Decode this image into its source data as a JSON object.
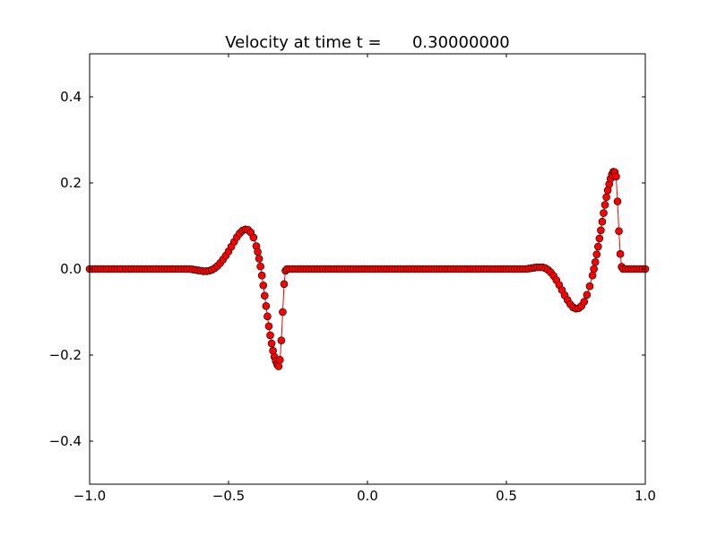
{
  "chart_data": {
    "type": "line",
    "title": "Velocity at time t =      0.30000000",
    "xlabel": "",
    "ylabel": "",
    "xlim": [
      -1.0,
      1.0
    ],
    "ylim": [
      -0.5,
      0.5
    ],
    "xticks": [
      -1.0,
      -0.5,
      0.0,
      0.5,
      1.0
    ],
    "xtick_labels": [
      "−1.0",
      "−0.5",
      "0.0",
      "0.5",
      "1.0"
    ],
    "yticks": [
      -0.4,
      -0.2,
      0.0,
      0.2,
      0.4
    ],
    "ytick_labels": [
      "−0.4",
      "−0.2",
      "0.0",
      "0.2",
      "0.4"
    ],
    "grid": false,
    "line_color": "#ff0000",
    "marker_fill": "#ff0000",
    "marker_edge": "#000000",
    "series": [
      {
        "points": [
          [
            -1.0,
            0.0
          ],
          [
            -0.99,
            0.0
          ],
          [
            -0.98,
            0.0
          ],
          [
            -0.97,
            0.0
          ],
          [
            -0.96,
            0.0
          ],
          [
            -0.95,
            0.0
          ],
          [
            -0.94,
            0.0
          ],
          [
            -0.93,
            0.0
          ],
          [
            -0.92,
            0.0
          ],
          [
            -0.91,
            0.0
          ],
          [
            -0.9,
            0.0
          ],
          [
            -0.89,
            0.0
          ],
          [
            -0.88,
            0.0
          ],
          [
            -0.87,
            0.0
          ],
          [
            -0.86,
            0.0
          ],
          [
            -0.85,
            0.0
          ],
          [
            -0.84,
            0.0
          ],
          [
            -0.83,
            0.0
          ],
          [
            -0.82,
            0.0
          ],
          [
            -0.81,
            0.0
          ],
          [
            -0.8,
            0.0
          ],
          [
            -0.79,
            0.0
          ],
          [
            -0.78,
            0.0
          ],
          [
            -0.77,
            0.0
          ],
          [
            -0.76,
            0.0
          ],
          [
            -0.75,
            0.0
          ],
          [
            -0.74,
            0.0
          ],
          [
            -0.73,
            0.0
          ],
          [
            -0.72,
            0.0
          ],
          [
            -0.71,
            0.0
          ],
          [
            -0.7,
            0.0
          ],
          [
            -0.69,
            0.0
          ],
          [
            -0.68,
            0.0
          ],
          [
            -0.67,
            0.0
          ],
          [
            -0.66,
            0.0
          ],
          [
            -0.65,
            0.0
          ],
          [
            -0.64,
            0.0
          ],
          [
            -0.63,
            -0.001
          ],
          [
            -0.62,
            -0.002
          ],
          [
            -0.61,
            -0.003
          ],
          [
            -0.6,
            -0.004
          ],
          [
            -0.59,
            -0.005
          ],
          [
            -0.58,
            -0.005
          ],
          [
            -0.57,
            -0.004
          ],
          [
            -0.56,
            -0.002
          ],
          [
            -0.55,
            0.002
          ],
          [
            -0.54,
            0.007
          ],
          [
            -0.53,
            0.014
          ],
          [
            -0.52,
            0.022
          ],
          [
            -0.51,
            0.031
          ],
          [
            -0.5,
            0.041
          ],
          [
            -0.49,
            0.052
          ],
          [
            -0.48,
            0.063
          ],
          [
            -0.47,
            0.074
          ],
          [
            -0.46,
            0.083
          ],
          [
            -0.45,
            0.089
          ],
          [
            -0.44,
            0.092
          ],
          [
            -0.43,
            0.091
          ],
          [
            -0.42,
            0.085
          ],
          [
            -0.41,
            0.073
          ],
          [
            -0.4,
            0.053
          ],
          [
            -0.395,
            0.04
          ],
          [
            -0.39,
            0.024
          ],
          [
            -0.385,
            0.006
          ],
          [
            -0.38,
            -0.015
          ],
          [
            -0.375,
            -0.038
          ],
          [
            -0.37,
            -0.062
          ],
          [
            -0.365,
            -0.086
          ],
          [
            -0.36,
            -0.11
          ],
          [
            -0.355,
            -0.133
          ],
          [
            -0.35,
            -0.154
          ],
          [
            -0.345,
            -0.173
          ],
          [
            -0.34,
            -0.19
          ],
          [
            -0.335,
            -0.204
          ],
          [
            -0.33,
            -0.214
          ],
          [
            -0.325,
            -0.222
          ],
          [
            -0.32,
            -0.226
          ],
          [
            -0.315,
            -0.211
          ],
          [
            -0.31,
            -0.166
          ],
          [
            -0.305,
            -0.1
          ],
          [
            -0.3,
            -0.035
          ],
          [
            -0.295,
            -0.004
          ],
          [
            -0.29,
            0.0
          ],
          [
            -0.28,
            0.0
          ],
          [
            -0.27,
            0.0
          ],
          [
            -0.26,
            0.0
          ],
          [
            -0.25,
            0.0
          ],
          [
            -0.24,
            0.0
          ],
          [
            -0.23,
            0.0
          ],
          [
            -0.22,
            0.0
          ],
          [
            -0.21,
            0.0
          ],
          [
            -0.2,
            0.0
          ],
          [
            -0.19,
            0.0
          ],
          [
            -0.18,
            0.0
          ],
          [
            -0.17,
            0.0
          ],
          [
            -0.16,
            0.0
          ],
          [
            -0.15,
            0.0
          ],
          [
            -0.14,
            0.0
          ],
          [
            -0.13,
            0.0
          ],
          [
            -0.12,
            0.0
          ],
          [
            -0.11,
            0.0
          ],
          [
            -0.1,
            0.0
          ],
          [
            -0.09,
            0.0
          ],
          [
            -0.08,
            0.0
          ],
          [
            -0.07,
            0.0
          ],
          [
            -0.06,
            0.0
          ],
          [
            -0.05,
            0.0
          ],
          [
            -0.04,
            0.0
          ],
          [
            -0.03,
            0.0
          ],
          [
            -0.02,
            0.0
          ],
          [
            -0.01,
            0.0
          ],
          [
            0.0,
            0.0
          ],
          [
            0.01,
            0.0
          ],
          [
            0.02,
            0.0
          ],
          [
            0.03,
            0.0
          ],
          [
            0.04,
            0.0
          ],
          [
            0.05,
            0.0
          ],
          [
            0.06,
            0.0
          ],
          [
            0.07,
            0.0
          ],
          [
            0.08,
            0.0
          ],
          [
            0.09,
            0.0
          ],
          [
            0.1,
            0.0
          ],
          [
            0.11,
            0.0
          ],
          [
            0.12,
            0.0
          ],
          [
            0.13,
            0.0
          ],
          [
            0.14,
            0.0
          ],
          [
            0.15,
            0.0
          ],
          [
            0.16,
            0.0
          ],
          [
            0.17,
            0.0
          ],
          [
            0.18,
            0.0
          ],
          [
            0.19,
            0.0
          ],
          [
            0.2,
            0.0
          ],
          [
            0.21,
            0.0
          ],
          [
            0.22,
            0.0
          ],
          [
            0.23,
            0.0
          ],
          [
            0.24,
            0.0
          ],
          [
            0.25,
            0.0
          ],
          [
            0.26,
            0.0
          ],
          [
            0.27,
            0.0
          ],
          [
            0.28,
            0.0
          ],
          [
            0.29,
            0.0
          ],
          [
            0.3,
            0.0
          ],
          [
            0.31,
            0.0
          ],
          [
            0.32,
            0.0
          ],
          [
            0.33,
            0.0
          ],
          [
            0.34,
            0.0
          ],
          [
            0.35,
            0.0
          ],
          [
            0.36,
            0.0
          ],
          [
            0.37,
            0.0
          ],
          [
            0.38,
            0.0
          ],
          [
            0.39,
            0.0
          ],
          [
            0.4,
            0.0
          ],
          [
            0.41,
            0.0
          ],
          [
            0.42,
            0.0
          ],
          [
            0.43,
            0.0
          ],
          [
            0.44,
            0.0
          ],
          [
            0.45,
            0.0
          ],
          [
            0.46,
            0.0
          ],
          [
            0.47,
            0.0
          ],
          [
            0.48,
            0.0
          ],
          [
            0.49,
            0.0
          ],
          [
            0.5,
            0.0
          ],
          [
            0.51,
            0.0
          ],
          [
            0.52,
            0.0
          ],
          [
            0.53,
            0.0
          ],
          [
            0.54,
            0.0
          ],
          [
            0.55,
            0.0
          ],
          [
            0.56,
            0.0
          ],
          [
            0.57,
            0.0
          ],
          [
            0.58,
            0.001
          ],
          [
            0.59,
            0.002
          ],
          [
            0.6,
            0.003
          ],
          [
            0.61,
            0.004
          ],
          [
            0.62,
            0.004
          ],
          [
            0.63,
            0.004
          ],
          [
            0.64,
            0.002
          ],
          [
            0.65,
            -0.002
          ],
          [
            0.66,
            -0.008
          ],
          [
            0.67,
            -0.016
          ],
          [
            0.68,
            -0.026
          ],
          [
            0.69,
            -0.037
          ],
          [
            0.7,
            -0.049
          ],
          [
            0.71,
            -0.061
          ],
          [
            0.72,
            -0.072
          ],
          [
            0.73,
            -0.082
          ],
          [
            0.74,
            -0.089
          ],
          [
            0.75,
            -0.092
          ],
          [
            0.76,
            -0.091
          ],
          [
            0.77,
            -0.086
          ],
          [
            0.78,
            -0.076
          ],
          [
            0.79,
            -0.06
          ],
          [
            0.8,
            -0.04
          ],
          [
            0.81,
            -0.015
          ],
          [
            0.815,
            0.0
          ],
          [
            0.82,
            0.016
          ],
          [
            0.825,
            0.034
          ],
          [
            0.83,
            0.052
          ],
          [
            0.835,
            0.071
          ],
          [
            0.84,
            0.09
          ],
          [
            0.845,
            0.11
          ],
          [
            0.85,
            0.13
          ],
          [
            0.855,
            0.149
          ],
          [
            0.86,
            0.167
          ],
          [
            0.865,
            0.183
          ],
          [
            0.87,
            0.197
          ],
          [
            0.875,
            0.21
          ],
          [
            0.88,
            0.22
          ],
          [
            0.885,
            0.226
          ],
          [
            0.89,
            0.225
          ],
          [
            0.895,
            0.215
          ],
          [
            0.9,
            0.157
          ],
          [
            0.905,
            0.088
          ],
          [
            0.91,
            0.035
          ],
          [
            0.915,
            0.005
          ],
          [
            0.92,
            0.0
          ],
          [
            0.93,
            0.0
          ],
          [
            0.94,
            0.0
          ],
          [
            0.95,
            0.0
          ],
          [
            0.96,
            0.0
          ],
          [
            0.97,
            0.0
          ],
          [
            0.98,
            0.0
          ],
          [
            0.99,
            0.0
          ],
          [
            1.0,
            0.0
          ]
        ]
      }
    ]
  }
}
